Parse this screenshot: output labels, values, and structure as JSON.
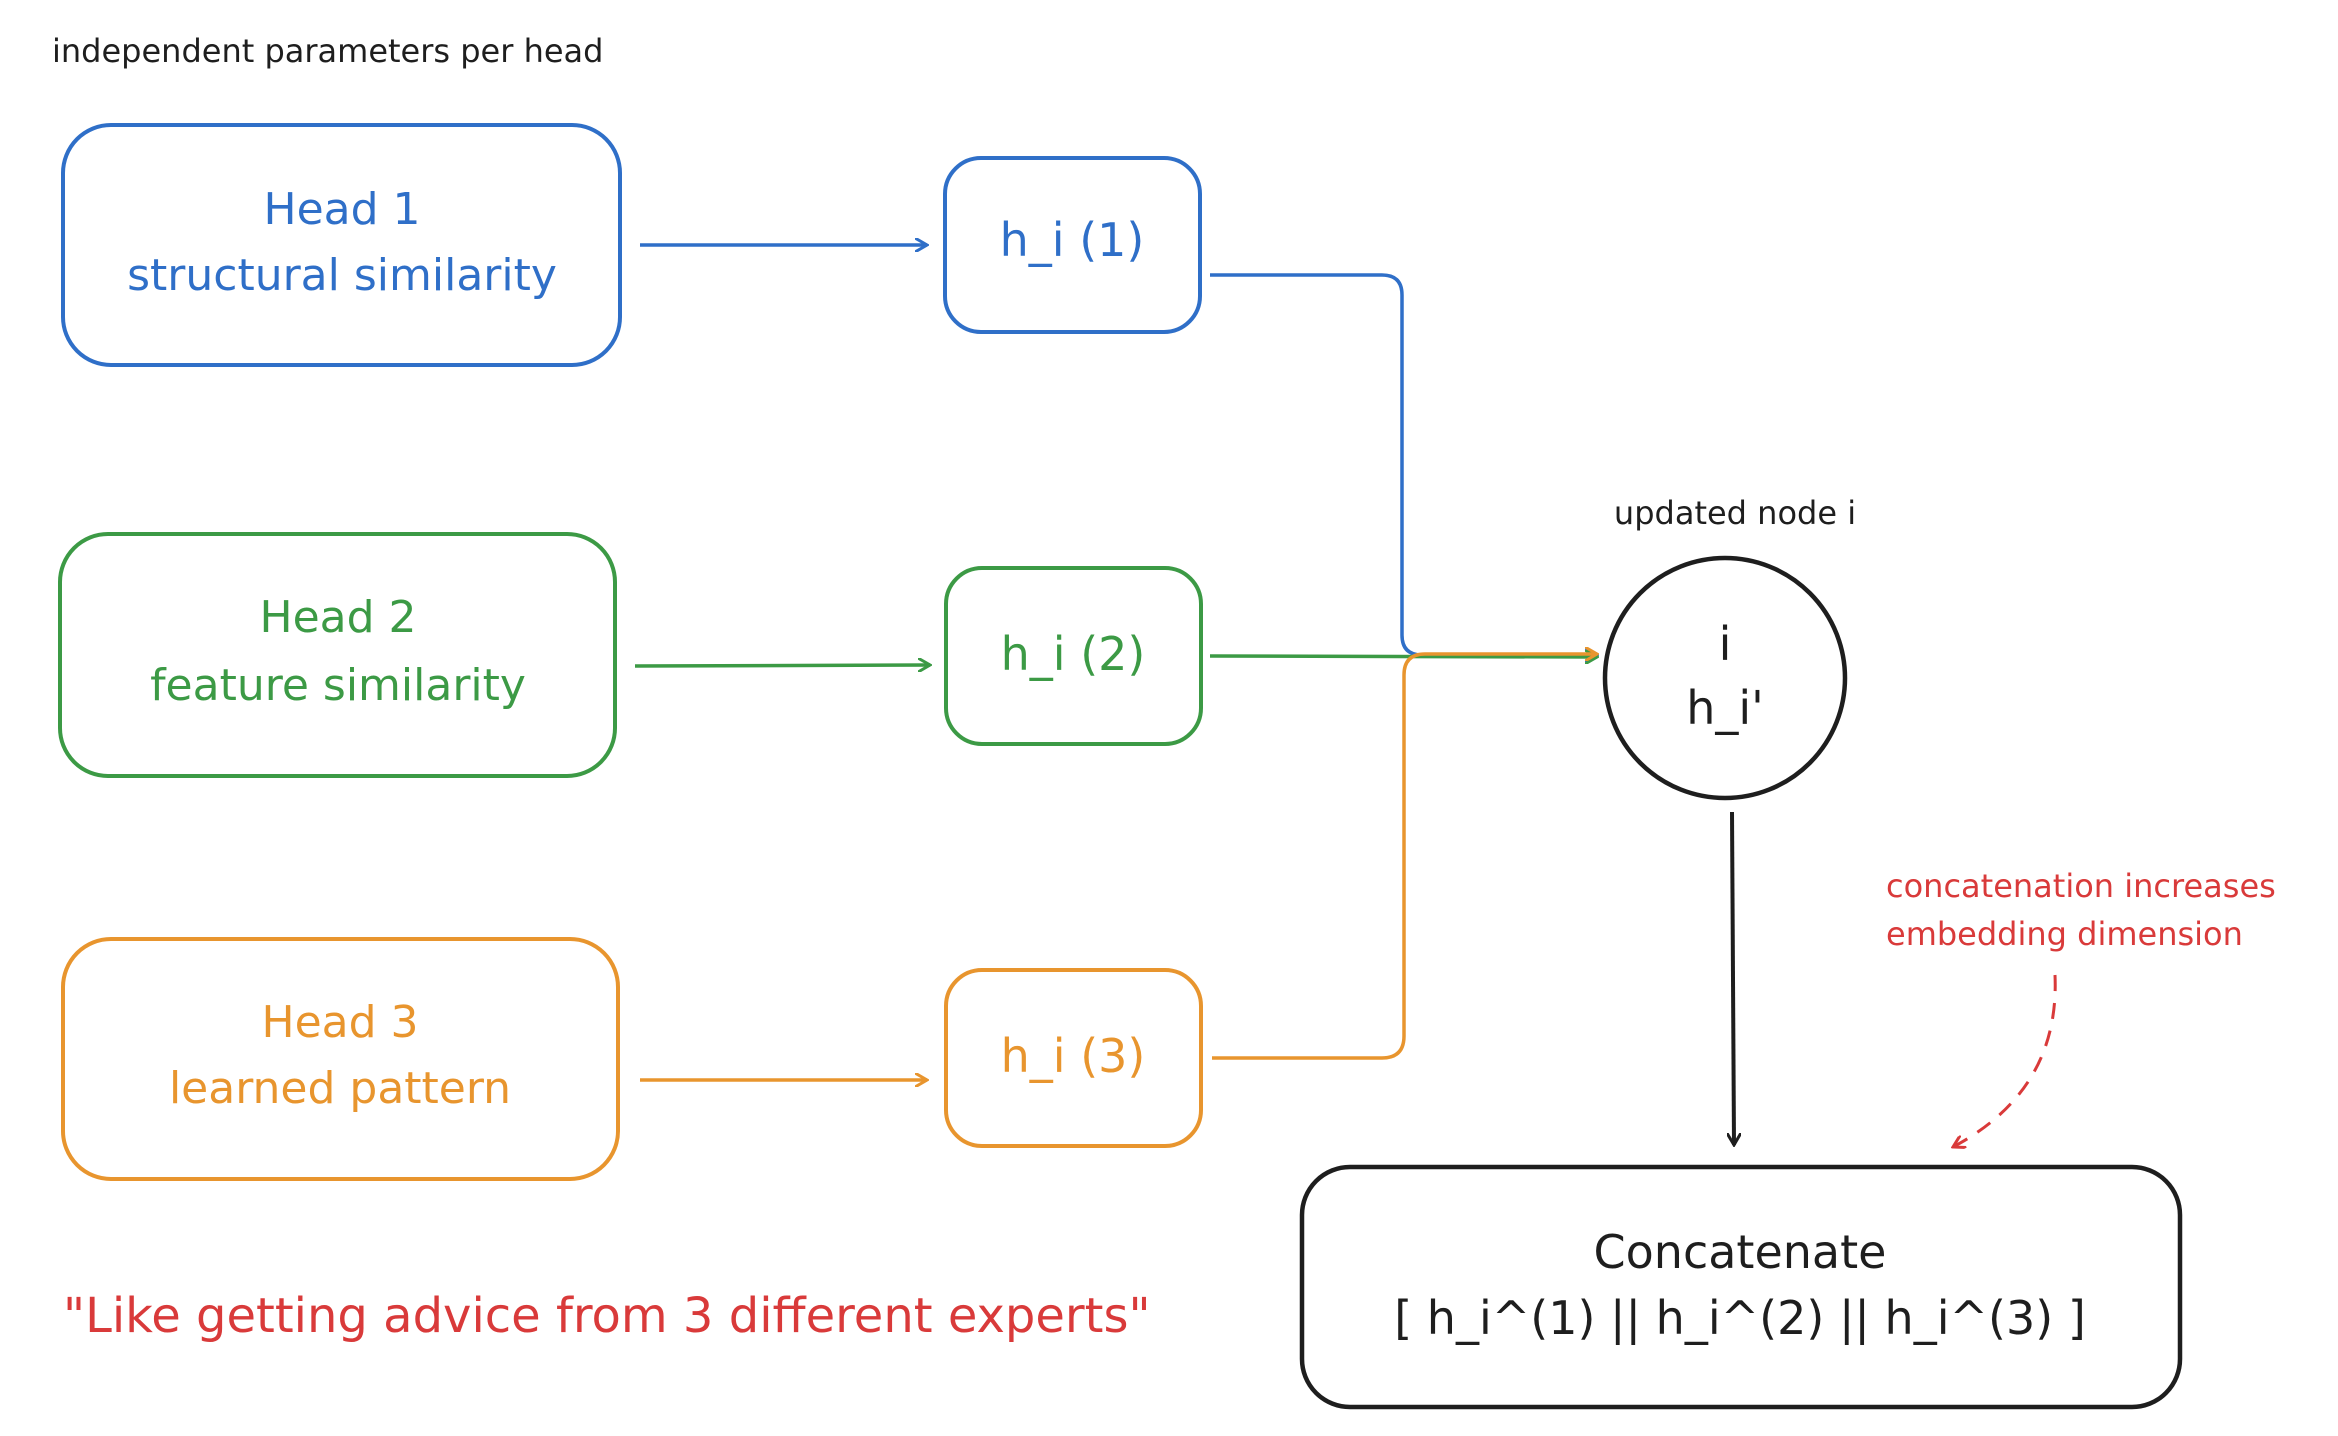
{
  "title": "independent parameters per head",
  "colors": {
    "head1": "#2f6fc8",
    "head2": "#3c9a45",
    "head3": "#e8952e",
    "note": "#d93a3a",
    "ink": "#1e1e1e"
  },
  "heads": [
    {
      "title": "Head 1",
      "subtitle": "structural similarity",
      "output": "h_i (1)"
    },
    {
      "title": "Head 2",
      "subtitle": "feature similarity",
      "output": "h_i (2)"
    },
    {
      "title": "Head 3",
      "subtitle": "learned pattern",
      "output": "h_i (3)"
    }
  ],
  "node": {
    "caption": "updated node i",
    "label": "i",
    "value": "h_i'"
  },
  "concat": {
    "title": "Concatenate",
    "formula": "[ h_i^(1) || h_i^(2) || h_i^(3) ]"
  },
  "note": {
    "line1": "concatenation increases",
    "line2": "embedding dimension"
  },
  "quote": "\"Like getting advice from 3 different experts\""
}
